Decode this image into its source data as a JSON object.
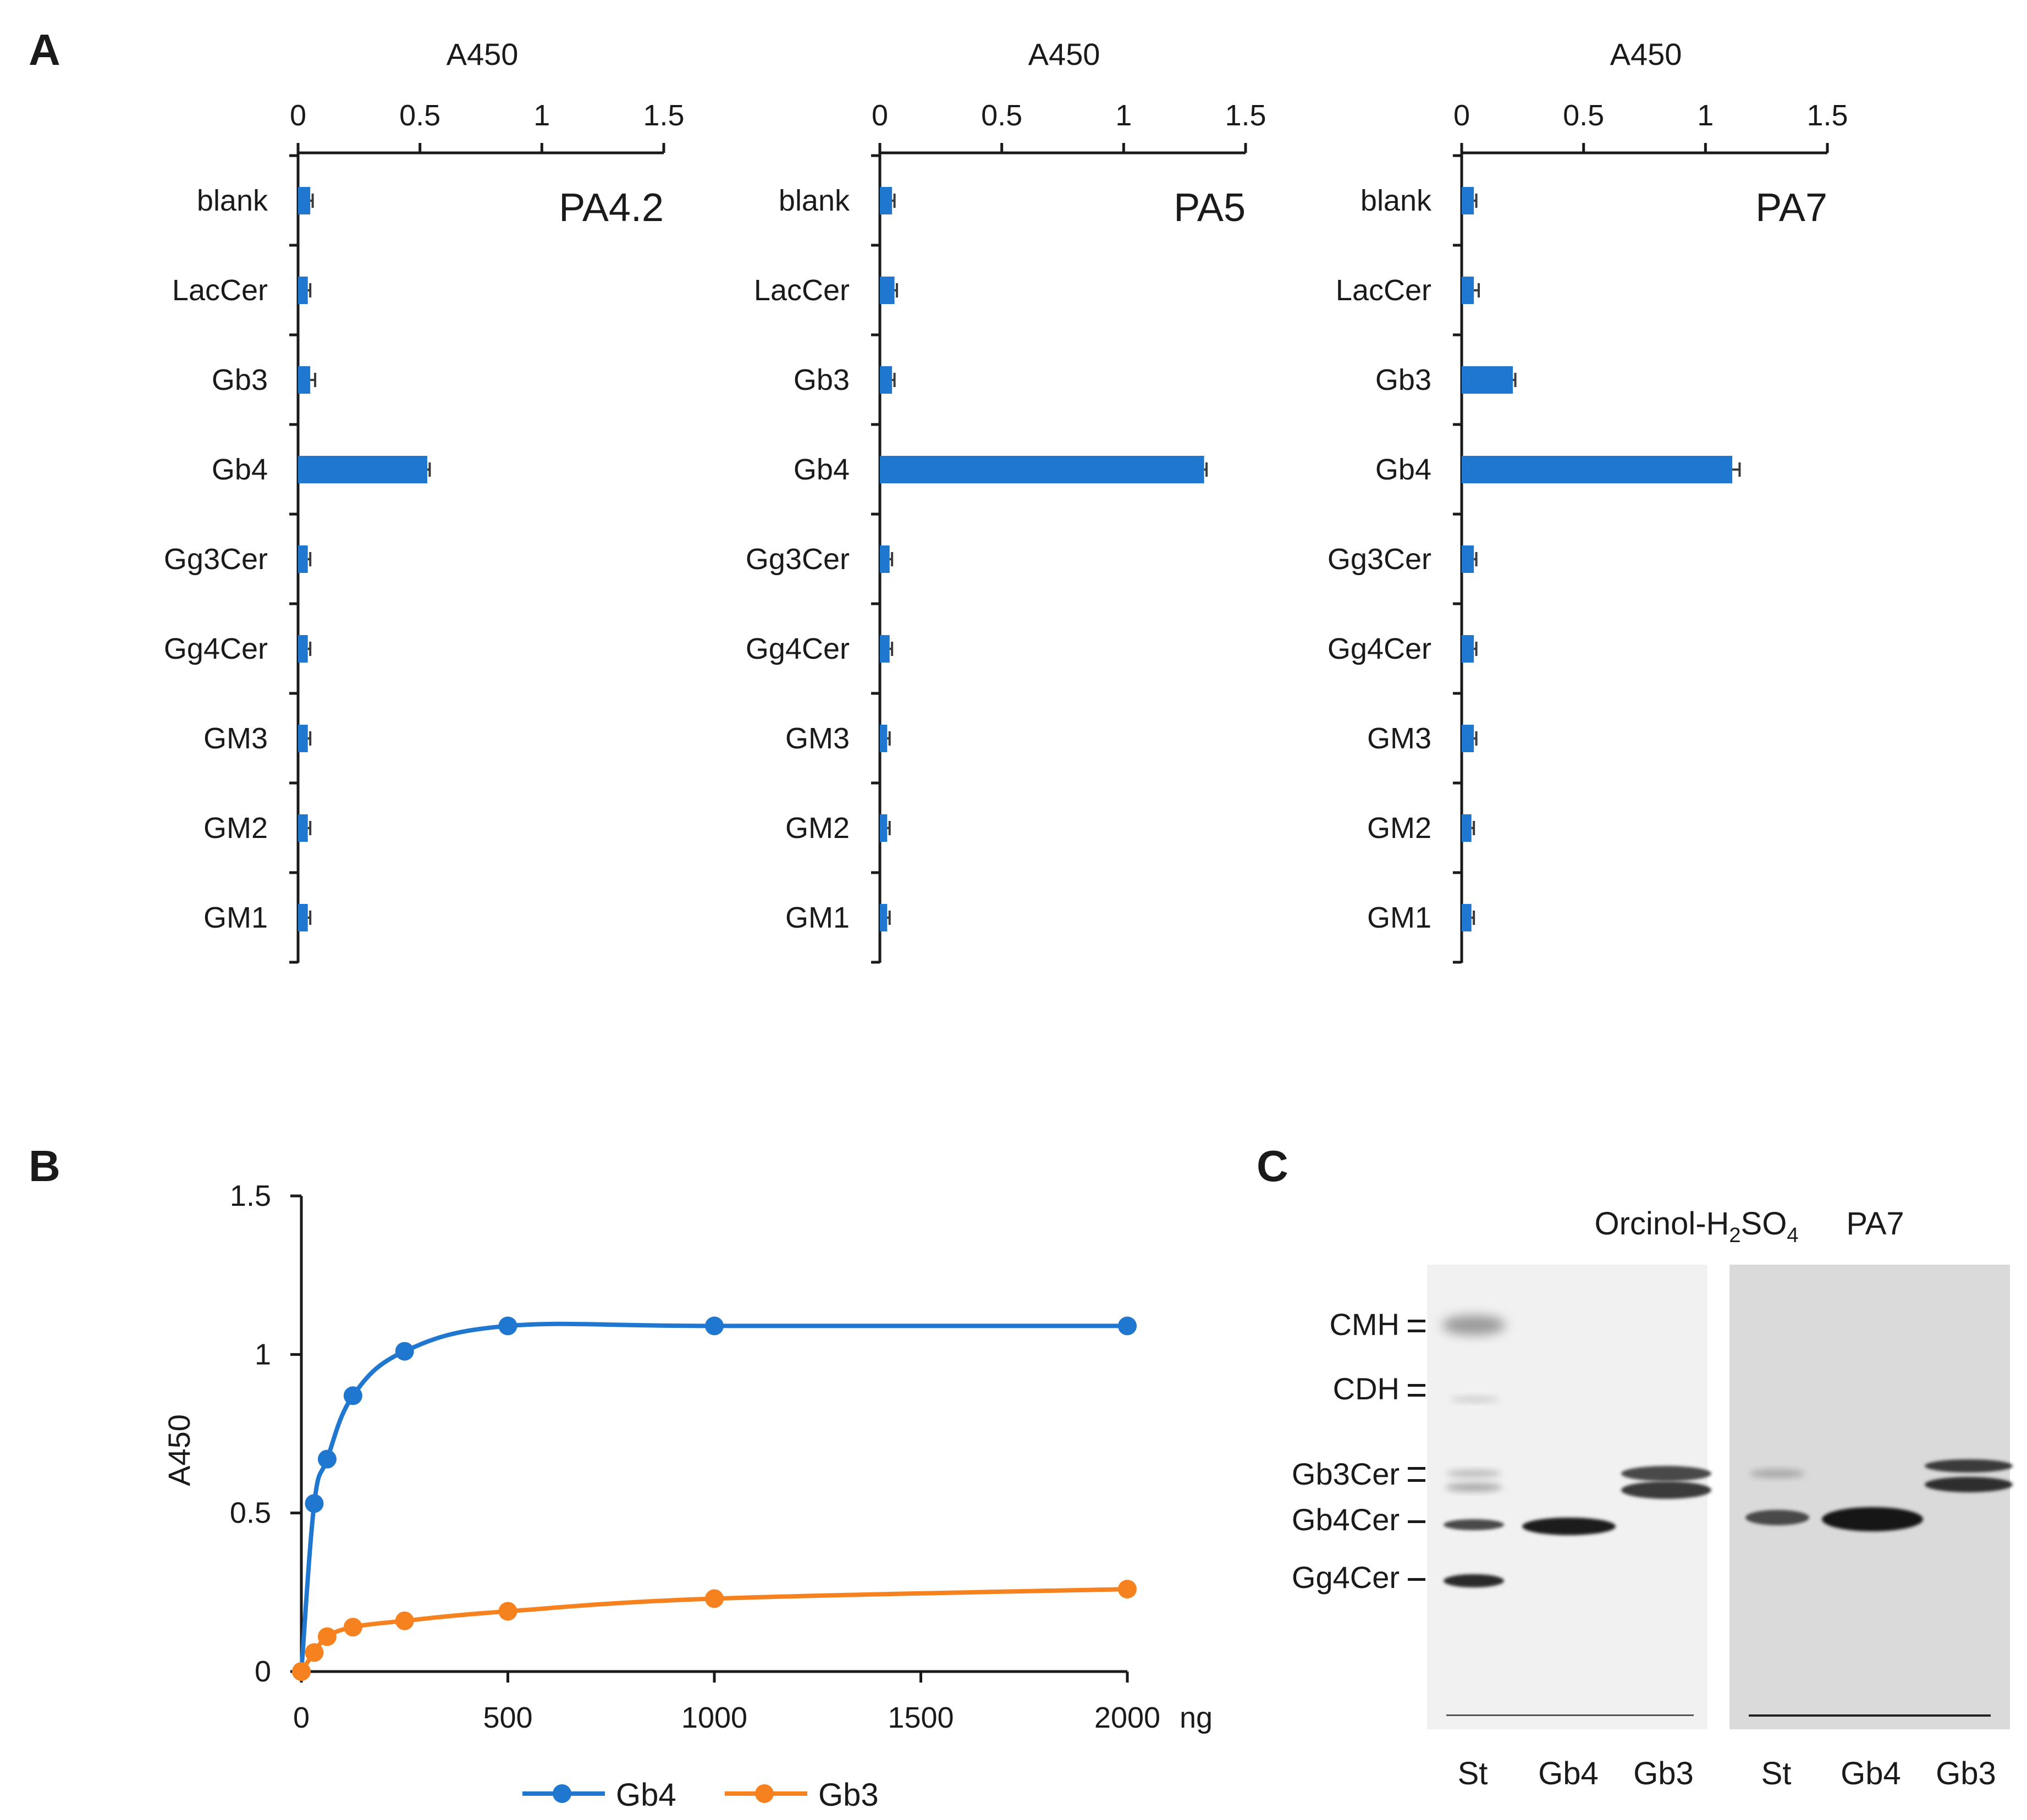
{
  "figure": {
    "panel_labels": [
      "A",
      "B",
      "C"
    ]
  },
  "colors": {
    "gb4": "#1f77d0",
    "gb3": "#f5821f",
    "axis": "#1a1a1a"
  },
  "chart_data": [
    {
      "type": "bar",
      "orientation": "horizontal",
      "panel": "A",
      "title": "PA4.2",
      "xlabel": "A450",
      "xlim": [
        0,
        1.5
      ],
      "xticks": [
        "0",
        "0.5",
        "1",
        "1.5"
      ],
      "categories": [
        "blank",
        "LacCer",
        "Gb3",
        "Gb4",
        "Gg3Cer",
        "Gg4Cer",
        "GM3",
        "GM2",
        "GM1"
      ],
      "values": [
        0.05,
        0.04,
        0.05,
        0.53,
        0.04,
        0.04,
        0.04,
        0.04,
        0.04
      ],
      "errors": [
        0.01,
        0.01,
        0.02,
        0.01,
        0.01,
        0.01,
        0.01,
        0.01,
        0.01
      ]
    },
    {
      "type": "bar",
      "orientation": "horizontal",
      "panel": "A",
      "title": "PA5",
      "xlabel": "A450",
      "xlim": [
        0,
        1.5
      ],
      "xticks": [
        "0",
        "0.5",
        "1",
        "1.5"
      ],
      "categories": [
        "blank",
        "LacCer",
        "Gb3",
        "Gb4",
        "Gg3Cer",
        "Gg4Cer",
        "GM3",
        "GM2",
        "GM1"
      ],
      "values": [
        0.05,
        0.06,
        0.05,
        1.33,
        0.04,
        0.04,
        0.03,
        0.03,
        0.03
      ],
      "errors": [
        0.01,
        0.01,
        0.01,
        0.01,
        0.01,
        0.01,
        0.01,
        0.01,
        0.01
      ]
    },
    {
      "type": "bar",
      "orientation": "horizontal",
      "panel": "A",
      "title": "PA7",
      "xlabel": "A450",
      "xlim": [
        0,
        1.5
      ],
      "xticks": [
        "0",
        "0.5",
        "1",
        "1.5"
      ],
      "categories": [
        "blank",
        "LacCer",
        "Gb3",
        "Gb4",
        "Gg3Cer",
        "Gg4Cer",
        "GM3",
        "GM2",
        "GM1"
      ],
      "values": [
        0.05,
        0.05,
        0.21,
        1.11,
        0.05,
        0.05,
        0.05,
        0.04,
        0.04
      ],
      "errors": [
        0.01,
        0.02,
        0.01,
        0.03,
        0.01,
        0.01,
        0.01,
        0.01,
        0.01
      ]
    },
    {
      "type": "line",
      "panel": "B",
      "ylabel": "A450",
      "xunit": "ng",
      "xlim": [
        0,
        2000
      ],
      "ylim": [
        0,
        1.5
      ],
      "xticks": [
        "0",
        "500",
        "1000",
        "1500",
        "2000"
      ],
      "yticks": [
        "0",
        "0.5",
        "1",
        "1.5"
      ],
      "series": [
        {
          "name": "Gb4",
          "x": [
            0,
            31.25,
            62.5,
            125,
            250,
            500,
            1000,
            2000
          ],
          "y": [
            0.0,
            0.53,
            0.67,
            0.87,
            1.01,
            1.09,
            1.09,
            1.09
          ]
        },
        {
          "name": "Gb3",
          "x": [
            0,
            31.25,
            62.5,
            125,
            250,
            500,
            1000,
            2000
          ],
          "y": [
            0.0,
            0.06,
            0.11,
            0.14,
            0.16,
            0.19,
            0.23,
            0.26
          ]
        }
      ]
    }
  ],
  "blot": {
    "panel": "C",
    "left_title_main": "Orcinol-H",
    "left_title_sub1": "2",
    "left_title_mid": "SO",
    "left_title_sub2": "4",
    "right_title": "PA7",
    "bands": [
      "CMH",
      "CDH",
      "Gb3Cer",
      "Gb4Cer",
      "Gg4Cer"
    ],
    "lanes_left": [
      "St",
      "Gb4",
      "Gb3"
    ],
    "lanes_right": [
      "St",
      "Gb4",
      "Gb3"
    ]
  }
}
